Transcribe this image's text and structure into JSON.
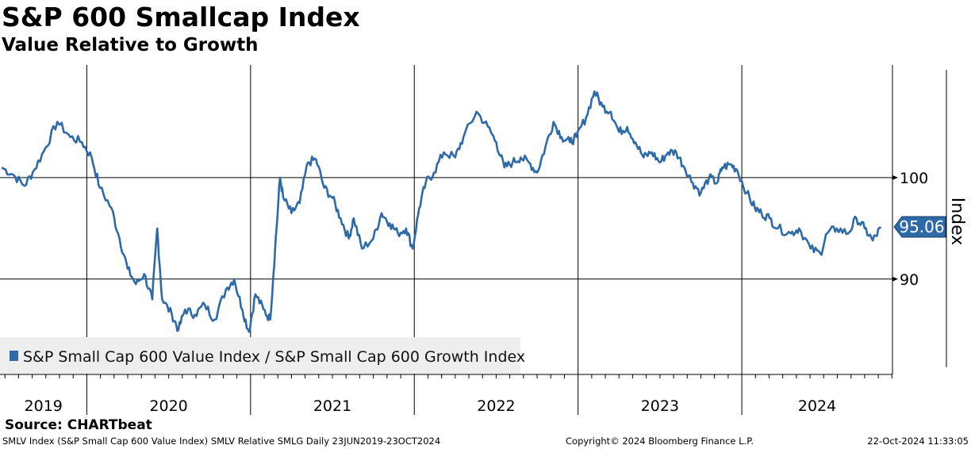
{
  "header": {
    "title": "S&P 600 Smallcap Index",
    "subtitle": "Value Relative to Growth"
  },
  "footer": {
    "source": "Source: CHARTbeat",
    "description": "SMLV Index (S&P Small Cap 600 Value Index) SMLV Relative SMLG  Daily 23JUN2019-23OCT2024",
    "copyright": "Copyright© 2024 Bloomberg Finance L.P.",
    "timestamp": "22-Oct-2024 11:33:05"
  },
  "colors": {
    "series": "#2e6aa8",
    "legend_bg": "#eeeeee"
  },
  "chart_data": {
    "type": "line",
    "title": "S&P 600 Smallcap Index",
    "subtitle": "Value Relative to Growth",
    "ylabel": "Index",
    "ylim": [
      80.6,
      111.1
    ],
    "xlim": [
      2019.47,
      2024.92
    ],
    "y_ticks": [
      {
        "value": 90,
        "label": "90"
      },
      {
        "value": 100,
        "label": "100"
      }
    ],
    "x_ticks": [
      "2019",
      "2020",
      "2021",
      "2022",
      "2023",
      "2024"
    ],
    "last_value_label": "95.06",
    "legend": {
      "placement": "bottom-left",
      "entries": [
        "S&P Small Cap 600 Value Index / S&P Small Cap 600 Growth Index"
      ]
    },
    "series": [
      {
        "name": "S&P Small Cap 600 Value Index / S&P Small Cap 600 Growth Index",
        "x": [
          2019.48,
          2019.55,
          2019.62,
          2019.68,
          2019.75,
          2019.82,
          2019.9,
          2019.97,
          2020.03,
          2020.08,
          2020.15,
          2020.2,
          2020.25,
          2020.3,
          2020.35,
          2020.4,
          2020.43,
          2020.46,
          2020.52,
          2020.56,
          2020.6,
          2020.66,
          2020.72,
          2020.78,
          2020.85,
          2020.9,
          2020.95,
          2020.99,
          2021.03,
          2021.08,
          2021.12,
          2021.15,
          2021.18,
          2021.2,
          2021.25,
          2021.3,
          2021.35,
          2021.4,
          2021.45,
          2021.5,
          2021.55,
          2021.6,
          2021.63,
          2021.68,
          2021.75,
          2021.8,
          2021.85,
          2021.9,
          2021.95,
          2021.99,
          2022.03,
          2022.07,
          2022.12,
          2022.18,
          2022.25,
          2022.3,
          2022.38,
          2022.45,
          2022.5,
          2022.55,
          2022.6,
          2022.65,
          2022.7,
          2022.75,
          2022.8,
          2022.85,
          2022.9,
          2022.95,
          2022.99,
          2023.05,
          2023.1,
          2023.15,
          2023.2,
          2023.25,
          2023.3,
          2023.35,
          2023.4,
          2023.45,
          2023.5,
          2023.55,
          2023.6,
          2023.65,
          2023.7,
          2023.75,
          2023.8,
          2023.85,
          2023.88,
          2023.93,
          2023.97,
          2024.03,
          2024.08,
          2024.12,
          2024.17,
          2024.22,
          2024.3,
          2024.35,
          2024.42,
          2024.48,
          2024.52,
          2024.58,
          2024.65,
          2024.7,
          2024.75,
          2024.8,
          2024.85
        ],
        "y": [
          101.0,
          100.3,
          99.2,
          100.8,
          103.0,
          105.5,
          104.0,
          103.5,
          102.0,
          99.0,
          97.0,
          94.0,
          91.0,
          89.5,
          90.5,
          88.0,
          95.0,
          88.0,
          86.5,
          85.0,
          87.0,
          86.5,
          87.5,
          86.0,
          89.0,
          90.0,
          87.0,
          84.8,
          88.5,
          87.0,
          86.0,
          93.0,
          100.0,
          98.0,
          96.5,
          97.5,
          101.5,
          101.8,
          99.0,
          98.0,
          96.0,
          94.0,
          96.0,
          93.0,
          94.0,
          96.5,
          95.5,
          94.5,
          95.0,
          93.0,
          97.0,
          99.5,
          100.5,
          102.5,
          102.0,
          104.0,
          106.5,
          105.0,
          103.5,
          101.0,
          101.5,
          102.0,
          101.5,
          100.5,
          103.0,
          105.5,
          104.0,
          103.5,
          104.0,
          106.0,
          108.5,
          107.0,
          106.5,
          104.5,
          105.0,
          103.5,
          102.0,
          102.5,
          101.5,
          102.5,
          102.5,
          101.0,
          99.5,
          98.5,
          100.0,
          99.5,
          101.0,
          101.3,
          100.8,
          98.5,
          97.0,
          96.5,
          96.0,
          95.0,
          94.5,
          95.0,
          93.0,
          92.5,
          94.5,
          95.0,
          94.5,
          96.0,
          95.0,
          93.8,
          95.06
        ]
      }
    ]
  }
}
